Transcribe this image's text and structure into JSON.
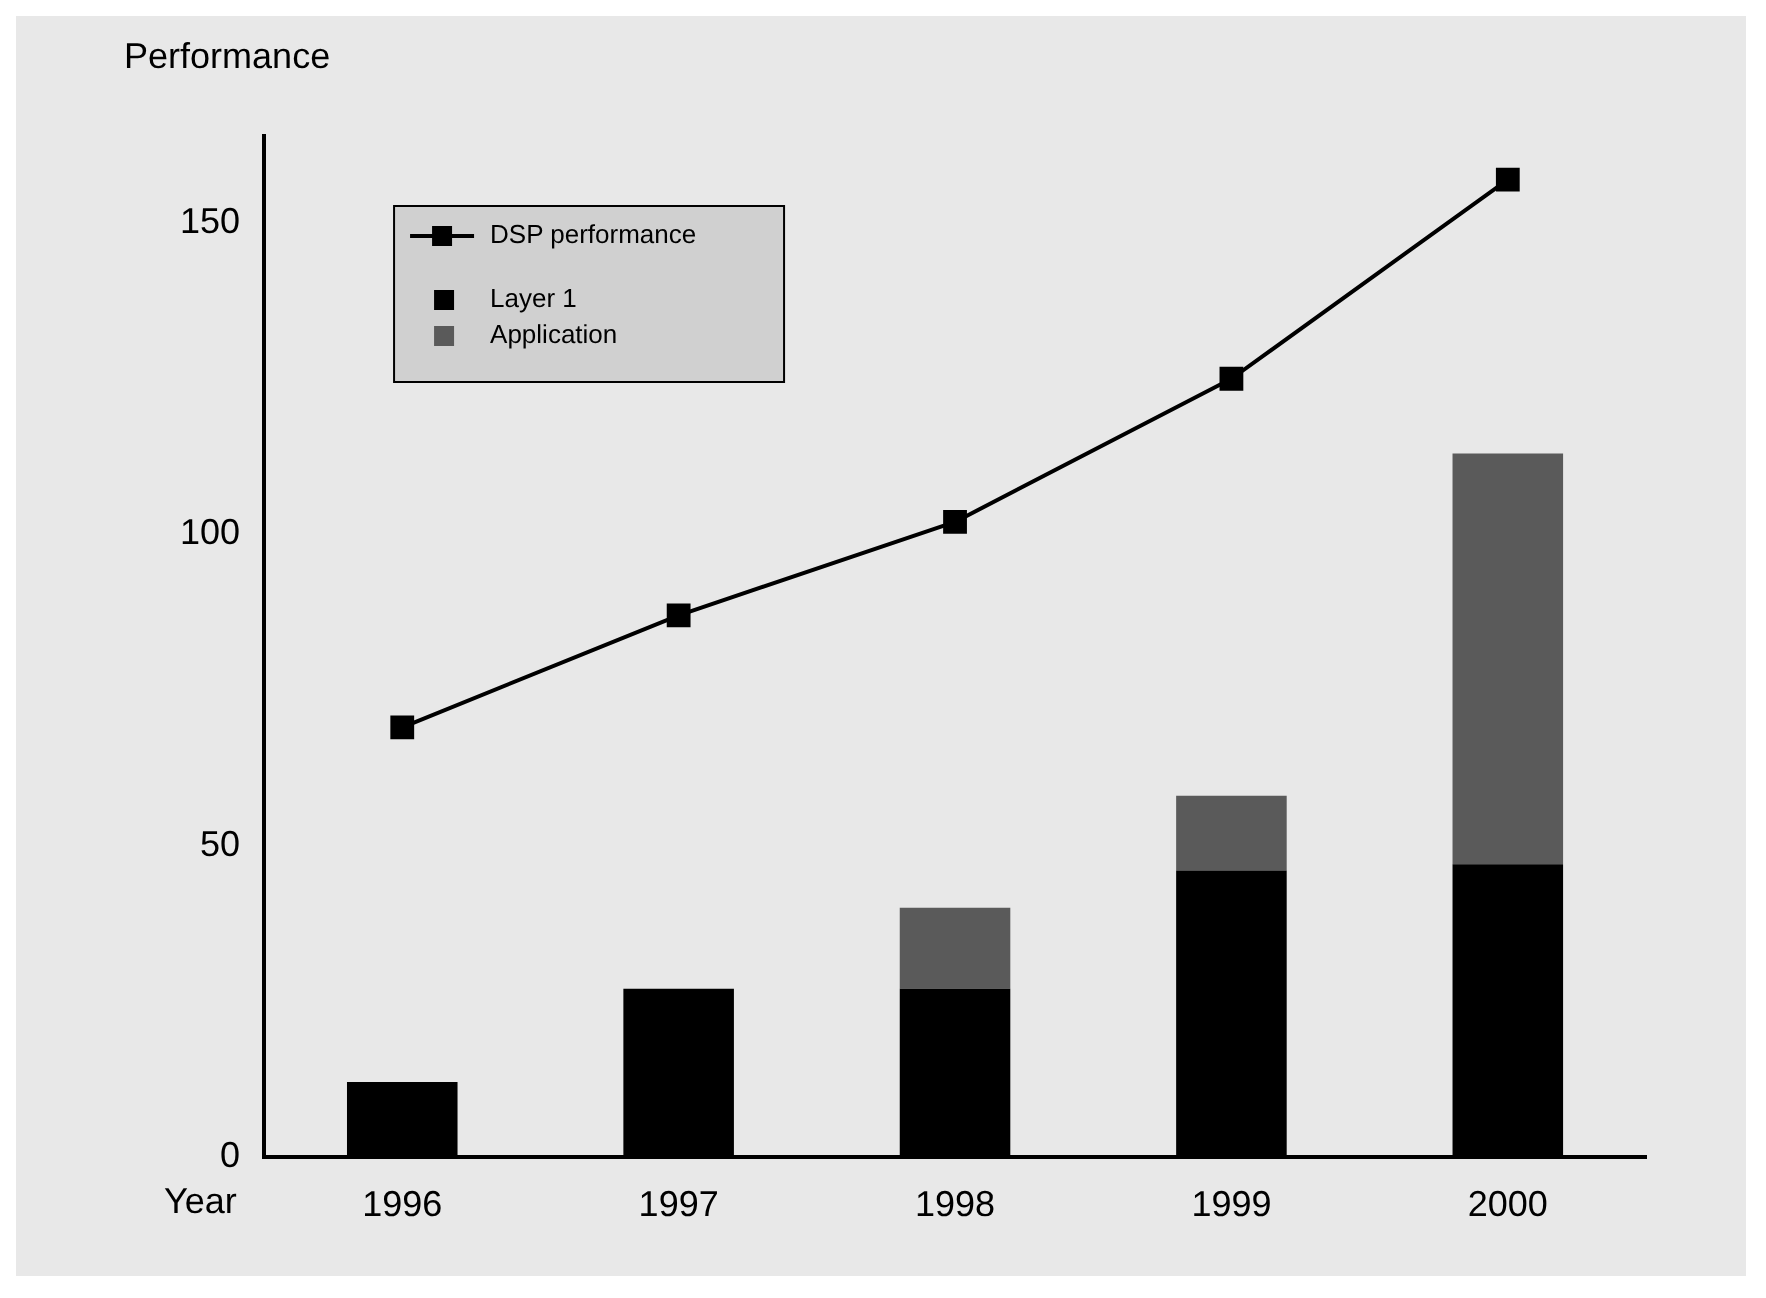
{
  "chart_data": {
    "type": "bar",
    "xlabel": "Year",
    "ylabel": "Performance",
    "categories": [
      "1996",
      "1997",
      "1998",
      "1999",
      "2000"
    ],
    "series": [
      {
        "name": "DSP performance",
        "type": "line",
        "color": "#000000",
        "values": [
          69,
          87,
          102,
          125,
          157
        ]
      },
      {
        "name": "Layer 1",
        "color": "#000000",
        "values": [
          12,
          27,
          27,
          46,
          47
        ]
      },
      {
        "name": "Application",
        "color": "#5a5a5a",
        "values": [
          0,
          0,
          13,
          12,
          66
        ]
      }
    ],
    "stacked": true,
    "ylim": [
      0,
      164
    ],
    "yticks": [
      0,
      50,
      100,
      150
    ],
    "grid": false,
    "legend": "top left",
    "marker": "square"
  }
}
